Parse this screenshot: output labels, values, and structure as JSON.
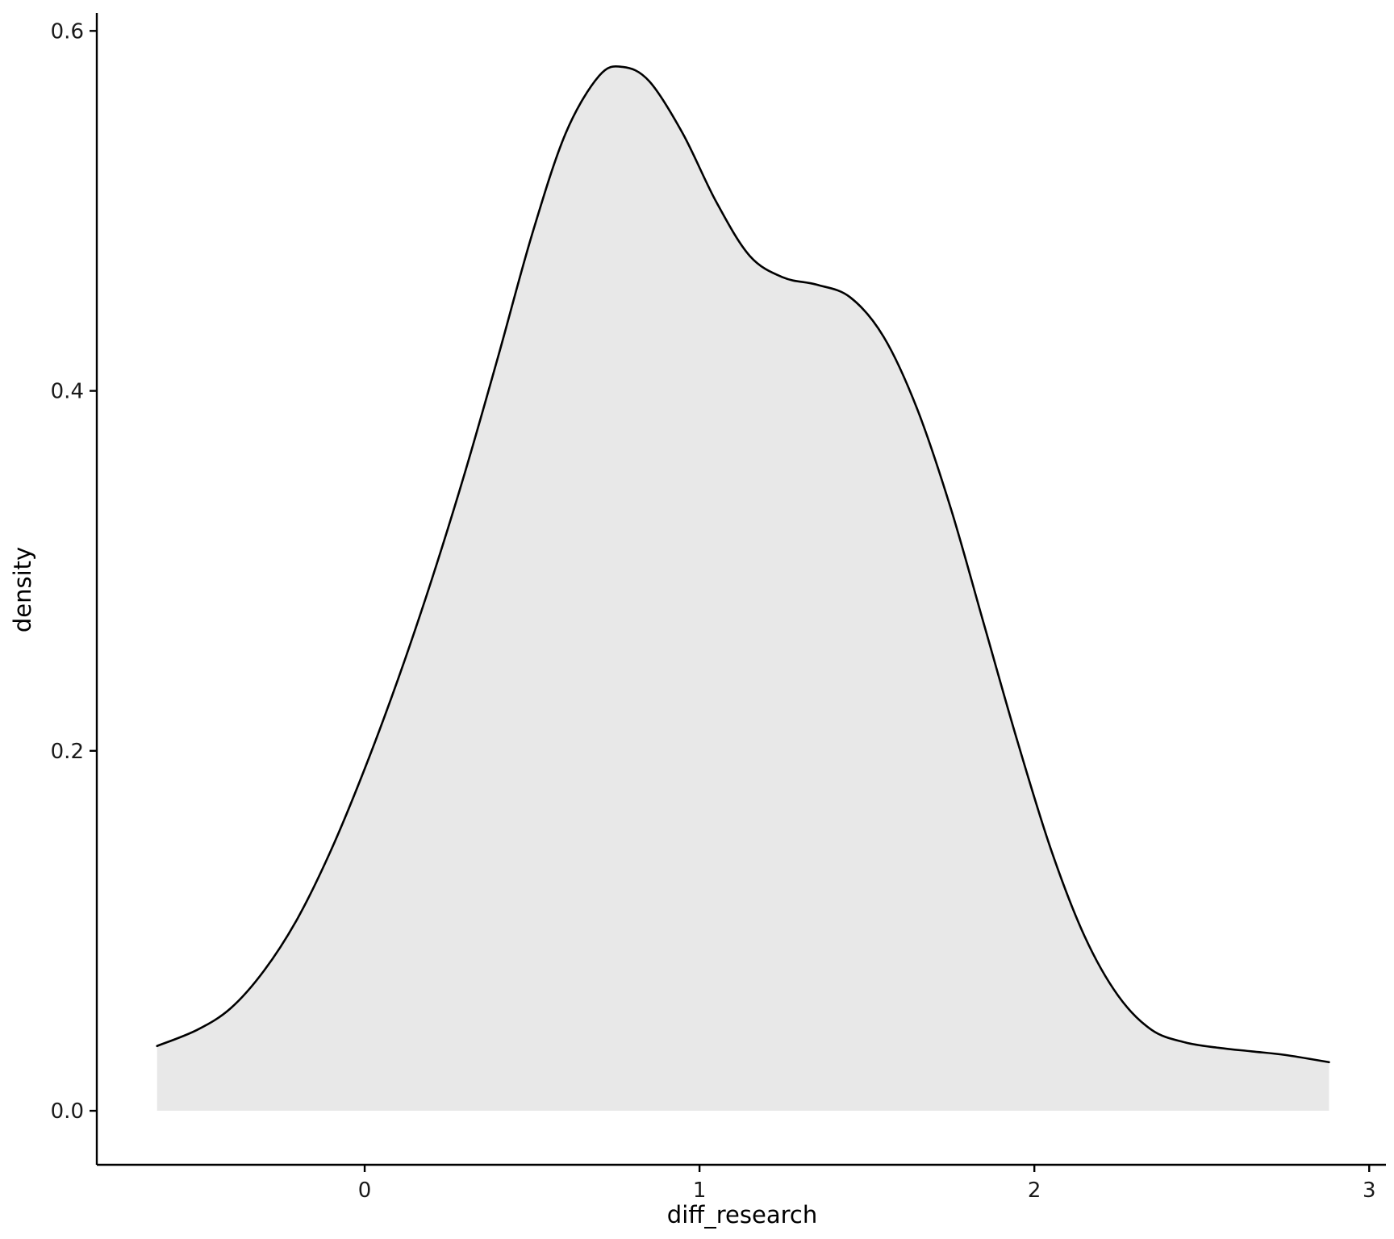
{
  "chart_data": {
    "type": "area",
    "title": "",
    "xlabel": "diff_research",
    "ylabel": "density",
    "xlim": [
      -0.8,
      3.05
    ],
    "ylim": [
      -0.03,
      0.61
    ],
    "x_ticks": [
      0,
      1,
      2,
      3
    ],
    "x_tick_labels": [
      "0",
      "1",
      "2",
      "3"
    ],
    "y_ticks": [
      0.0,
      0.2,
      0.4,
      0.6
    ],
    "y_tick_labels": [
      "0.0",
      "0.2",
      "0.4",
      "0.6"
    ],
    "grid": false,
    "legend": "none",
    "colors": {
      "fill": "#e8e8e8",
      "line": "#000000",
      "axis": "#000000"
    },
    "series": [
      {
        "x": [
          -0.62,
          -0.5,
          -0.4,
          -0.3,
          -0.2,
          -0.1,
          0.0,
          0.1,
          0.2,
          0.3,
          0.4,
          0.5,
          0.6,
          0.7,
          0.77,
          0.85,
          0.95,
          1.05,
          1.15,
          1.25,
          1.35,
          1.45,
          1.55,
          1.65,
          1.75,
          1.85,
          1.95,
          2.05,
          2.15,
          2.25,
          2.35,
          2.45,
          2.55,
          2.65,
          2.75,
          2.88
        ],
        "y": [
          0.036,
          0.045,
          0.057,
          0.078,
          0.107,
          0.145,
          0.19,
          0.24,
          0.295,
          0.355,
          0.42,
          0.487,
          0.543,
          0.575,
          0.58,
          0.572,
          0.543,
          0.505,
          0.475,
          0.463,
          0.459,
          0.452,
          0.43,
          0.39,
          0.335,
          0.27,
          0.205,
          0.145,
          0.097,
          0.064,
          0.045,
          0.038,
          0.035,
          0.033,
          0.031,
          0.027
        ]
      }
    ]
  }
}
